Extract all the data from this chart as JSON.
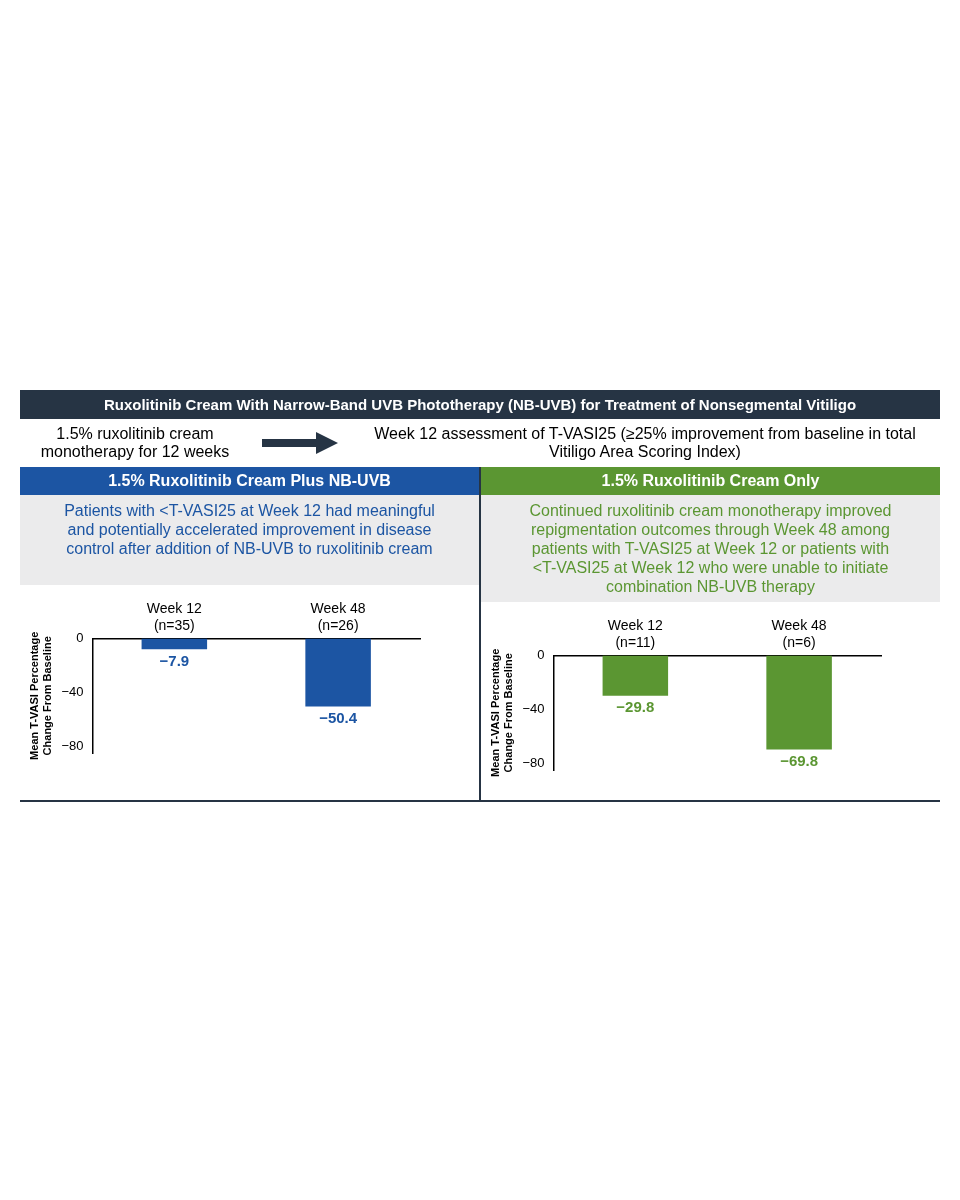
{
  "chart_data": [
    {
      "type": "other",
      "title": "Ruxolitinib Cream With Narrow-Band UVB Phototherapy (NB-UVB) for Treatment of Nonsegmental Vitiligo",
      "annotations": [
        "1.5% ruxolitinib cream monotherapy for 12 weeks",
        "Week 12 assessment of T-VASI25 (≥25% improvement from baseline in total Vitiligo Area Scoring Index)"
      ]
    },
    {
      "type": "bar",
      "title": "1.5% Ruxolitinib Cream Plus NB-UVB",
      "subtitle": "Patients with <T-VASI25 at Week 12 had meaningful and potentially accelerated improvement in disease control after addition of NB-UVB to ruxolitinib cream",
      "ylabel": "Mean T-VASI Percentage Change From Baseline",
      "categories": [
        "Week 12 (n=35)",
        "Week 48 (n=26)"
      ],
      "values": [
        -7.9,
        -50.4
      ],
      "color": "#1c55a3",
      "ylim": [
        -85,
        0
      ],
      "yticks": [
        0,
        -40,
        -80
      ],
      "grid": false,
      "data_labels": true
    },
    {
      "type": "bar",
      "title": "1.5% Ruxolitinib Cream Only",
      "subtitle": "Continued ruxolitinib cream monotherapy improved repigmentation outcomes through Week 48 among patients with T-VASI25 at Week 12 or patients with <T-VASI25 at Week 12 who were unable to initiate combination NB-UVB therapy",
      "ylabel": "Mean T-VASI Percentage Change From Baseline",
      "categories": [
        "Week 12 (n=11)",
        "Week 48 (n=6)"
      ],
      "values": [
        -29.8,
        -69.8
      ],
      "color": "#5b9632",
      "ylim": [
        -85,
        0
      ],
      "yticks": [
        0,
        -40,
        -80
      ],
      "grid": false,
      "data_labels": true
    }
  ]
}
